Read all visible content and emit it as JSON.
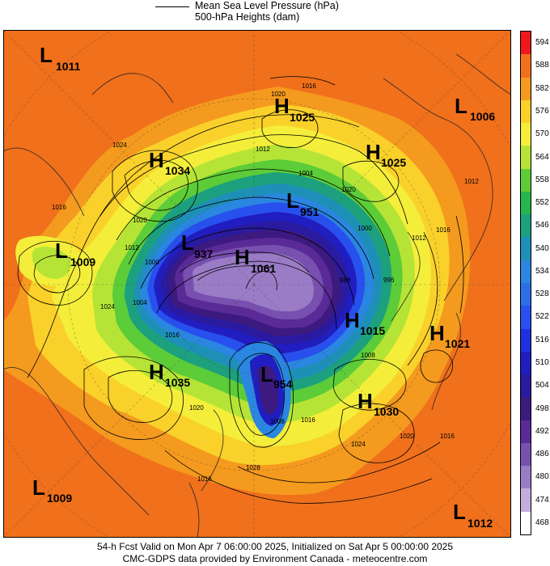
{
  "legend": {
    "line_label_1": "Mean Sea Level Pressure (hPa)",
    "line_label_2": "500-hPa Heights (dam)"
  },
  "colorbar": {
    "levels": [
      "594",
      "588",
      "582",
      "576",
      "570",
      "564",
      "558",
      "552",
      "546",
      "540",
      "534",
      "528",
      "522",
      "516",
      "510",
      "504",
      "498",
      "492",
      "486",
      "480",
      "474",
      "468"
    ],
    "colors": [
      "#f0181c",
      "#f0701c",
      "#f49a1e",
      "#fad12a",
      "#f4ee3a",
      "#b6e436",
      "#5ccc38",
      "#26b64c",
      "#1ca07e",
      "#1e90b8",
      "#2a86e0",
      "#2a6ee8",
      "#2850ee",
      "#2030e0",
      "#201ec0",
      "#2a1aa0",
      "#3c1a80",
      "#5a2a96",
      "#7850b0",
      "#9a7cc6",
      "#c2aedc",
      "#ffffff"
    ]
  },
  "systems": [
    {
      "type": "L",
      "value": "1011"
    },
    {
      "type": "H",
      "value": "1025"
    },
    {
      "type": "L",
      "value": "1006"
    },
    {
      "type": "H",
      "value": "1034"
    },
    {
      "type": "H",
      "value": "1025"
    },
    {
      "type": "L",
      "value": "951"
    },
    {
      "type": "L",
      "value": "1009"
    },
    {
      "type": "L",
      "value": "937"
    },
    {
      "type": "H",
      "value": "1061"
    },
    {
      "type": "H",
      "value": "1015"
    },
    {
      "type": "H",
      "value": "1021"
    },
    {
      "type": "H",
      "value": "1035"
    },
    {
      "type": "L",
      "value": "954"
    },
    {
      "type": "H",
      "value": "1030"
    },
    {
      "type": "L",
      "value": "1009"
    },
    {
      "type": "L",
      "value": "1012"
    }
  ],
  "isobar_labels": [
    "1016",
    "1020",
    "1012",
    "1024",
    "1004",
    "1008",
    "1000",
    "996",
    "988",
    "1028"
  ],
  "footer": {
    "line1": "54-h Fcst Valid on Mon Apr  7 06:00:00 2025, Initialized on Sat Apr  5 00:00:00 2025",
    "line2": "CMC-GDPS data provided by Environment Canada - meteocentre.com"
  }
}
